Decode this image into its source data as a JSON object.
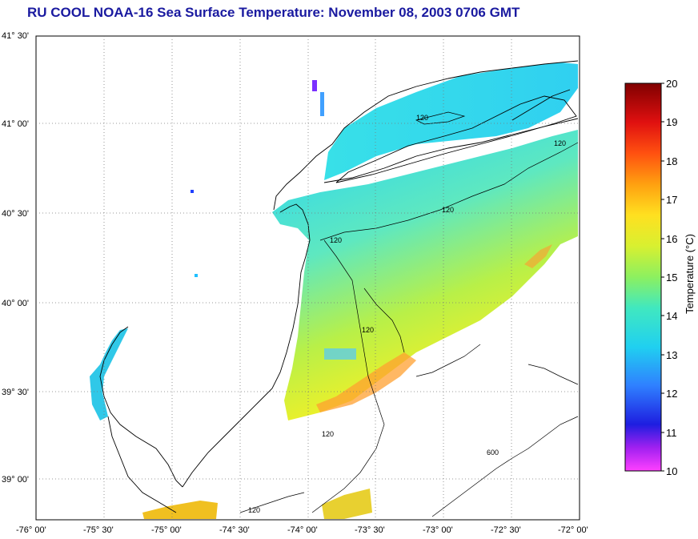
{
  "title": "RU COOL  NOAA-16  Sea Surface Temperature:  November 08, 2003 0706 GMT",
  "colors": {
    "title": "#1a1aa0",
    "land_outline": "#000000",
    "grid": "#7a7a7a",
    "background": "#ffffff"
  },
  "map": {
    "lat_labels": [
      "41° 30'",
      "41° 00'",
      "40° 30'",
      "40° 00'",
      "39° 30'",
      "39° 00'"
    ],
    "lon_labels": [
      "-76° 00'",
      "-75° 30'",
      "-75° 00'",
      "-74° 30'",
      "-74° 00'",
      "-73° 30'",
      "-73° 00'",
      "-72° 30'",
      "-72° 00'"
    ],
    "contour_labels": [
      "120",
      "120",
      "120",
      "120",
      "120",
      "120",
      "120",
      "600"
    ]
  },
  "colorbar": {
    "title": "Temperature (°C)",
    "tick_labels": [
      "20",
      "19",
      "18",
      "17",
      "16",
      "15",
      "14",
      "13",
      "12",
      "11",
      "10"
    ],
    "min": 10,
    "max": 20
  }
}
